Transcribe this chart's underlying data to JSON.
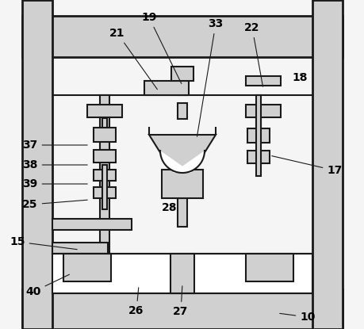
{
  "bg_color": "#f5f5f5",
  "line_color": "#1a1a1a",
  "fill_light": "#d0d0d0",
  "fill_white": "#ffffff",
  "figsize": [
    4.6,
    4.15
  ],
  "dpi": 100
}
